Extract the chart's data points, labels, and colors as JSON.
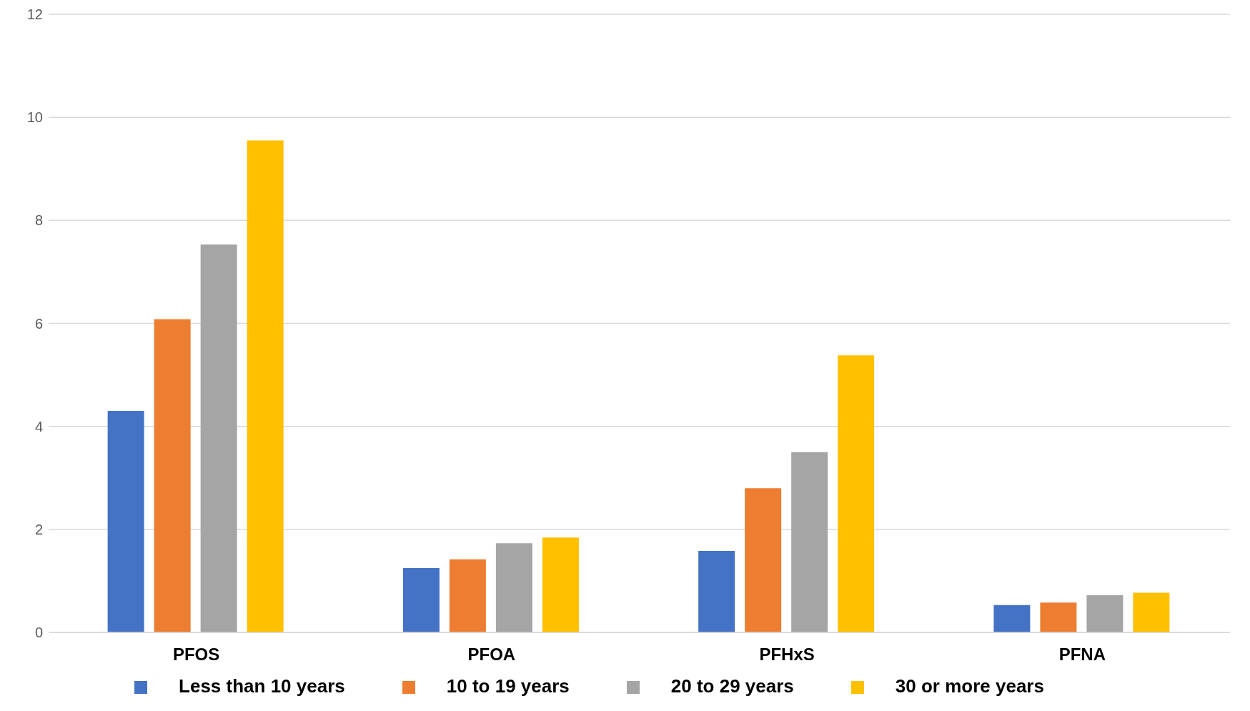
{
  "chart_data": {
    "type": "bar",
    "categories": [
      "PFOS",
      "PFOA",
      "PFHxS",
      "PFNA"
    ],
    "series": [
      {
        "name": "Less than 10 years",
        "color": "#4472c4",
        "values": [
          4.3,
          1.25,
          1.58,
          0.53
        ]
      },
      {
        "name": "10 to 19 years",
        "color": "#ed7d31",
        "values": [
          6.08,
          1.42,
          2.8,
          0.58
        ]
      },
      {
        "name": "20 to 29 years",
        "color": "#a5a5a5",
        "values": [
          7.53,
          1.73,
          3.5,
          0.72
        ]
      },
      {
        "name": "30 or more years",
        "color": "#ffc000",
        "values": [
          9.55,
          1.84,
          5.38,
          0.77
        ]
      }
    ],
    "ylim": [
      0,
      12
    ],
    "yticks": [
      0,
      2,
      4,
      6,
      8,
      10,
      12
    ],
    "grid": "y",
    "legend": "bottom"
  }
}
